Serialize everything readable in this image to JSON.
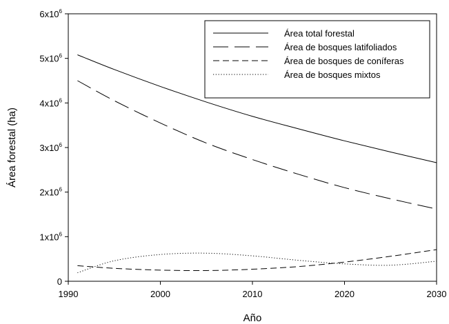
{
  "chart_data": {
    "type": "line",
    "title": "",
    "xlabel": "Año",
    "ylabel": "Área forestal (ha)",
    "xlim": [
      1990,
      2030
    ],
    "ylim": [
      0,
      6000000
    ],
    "xticks": [
      1990,
      2000,
      2010,
      2020,
      2030
    ],
    "xtick_labels": [
      "1990",
      "2000",
      "2010",
      "2020",
      "2030"
    ],
    "yticks": [
      0,
      1000000,
      2000000,
      3000000,
      4000000,
      5000000,
      6000000
    ],
    "ytick_labels": [
      {
        "base": "0",
        "sup": ""
      },
      {
        "base": "1x10",
        "sup": "6"
      },
      {
        "base": "2x10",
        "sup": "6"
      },
      {
        "base": "3x10",
        "sup": "6"
      },
      {
        "base": "4x10",
        "sup": "6"
      },
      {
        "base": "5x10",
        "sup": "6"
      },
      {
        "base": "6x10",
        "sup": "6"
      }
    ],
    "grid": false,
    "legend_position": "top-right",
    "x": [
      1991,
      1995,
      2000,
      2005,
      2010,
      2015,
      2020,
      2025,
      2030
    ],
    "series": [
      {
        "name": "Área total forestal",
        "style": "solid",
        "color": "#000000",
        "values": [
          5080000,
          4750000,
          4370000,
          4020000,
          3700000,
          3420000,
          3150000,
          2900000,
          2660000
        ]
      },
      {
        "name": "Área de bosques latifoliados",
        "style": "long-dash",
        "color": "#000000",
        "values": [
          4500000,
          4050000,
          3550000,
          3100000,
          2730000,
          2400000,
          2100000,
          1850000,
          1620000
        ]
      },
      {
        "name": "Área de bosques de coníferas",
        "style": "short-dash",
        "color": "#000000",
        "values": [
          350000,
          290000,
          250000,
          240000,
          270000,
          330000,
          430000,
          560000,
          710000
        ]
      },
      {
        "name": "Área de bosques mixtos",
        "style": "dotted",
        "color": "#000000",
        "values": [
          190000,
          460000,
          600000,
          630000,
          570000,
          470000,
          390000,
          360000,
          450000
        ]
      }
    ]
  }
}
